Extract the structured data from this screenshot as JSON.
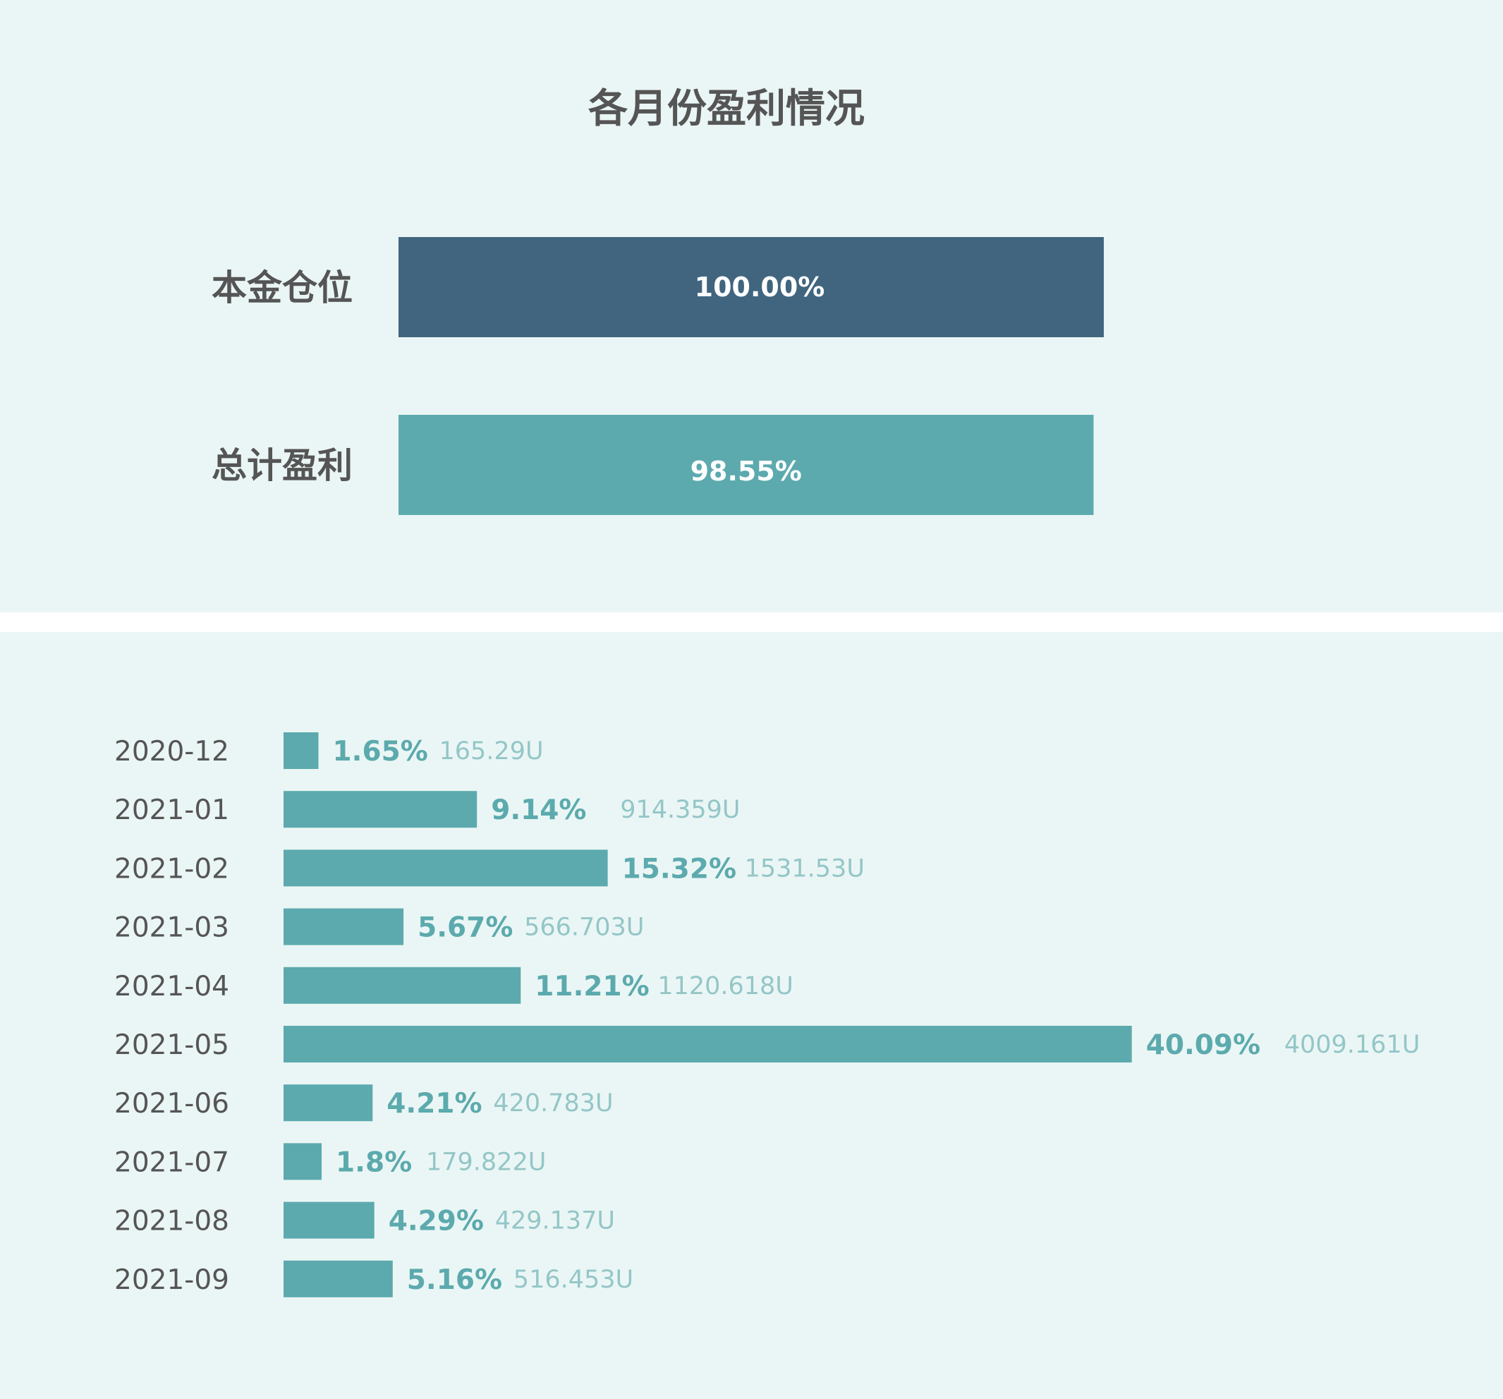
{
  "colors": {
    "background": "#eaf6f5",
    "divider": "#ffffff",
    "title_text": "#555555",
    "principal_bar": "#41657f",
    "profit_bar": "#5caaad",
    "bar_label": "#ffffff",
    "month_label": "#555555",
    "percent_label": "#5caaad",
    "amount_label": "#94c6c7"
  },
  "chart_data": [
    {
      "type": "bar",
      "orientation": "horizontal",
      "title": "各月份盈利情况",
      "categories": [
        "本金仓位",
        "总计盈利"
      ],
      "values": [
        100.0,
        98.55
      ],
      "value_labels": [
        "100.00%",
        "98.55%"
      ],
      "xlim": [
        0,
        100
      ],
      "grid": false
    },
    {
      "type": "bar",
      "orientation": "horizontal",
      "categories": [
        "2020-12",
        "2021-01",
        "2021-02",
        "2021-03",
        "2021-04",
        "2021-05",
        "2021-06",
        "2021-07",
        "2021-08",
        "2021-09"
      ],
      "values": [
        1.65,
        9.14,
        15.32,
        5.67,
        11.21,
        40.09,
        4.21,
        1.8,
        4.29,
        5.16
      ],
      "value_labels": [
        "1.65%",
        "9.14%",
        "15.32%",
        "5.67%",
        "11.21%",
        "40.09%",
        "4.21%",
        "1.8%",
        "4.29%",
        "5.16%"
      ],
      "amounts": [
        165.29,
        914.359,
        1531.53,
        566.703,
        1120.618,
        4009.161,
        420.783,
        179.822,
        429.137,
        516.453
      ],
      "amount_labels": [
        "165.29U",
        "914.359U",
        "1531.53U",
        "566.703U",
        "1120.618U",
        "4009.161U",
        "420.783U",
        "179.822U",
        "429.137U",
        "516.453U"
      ],
      "grid": false
    }
  ]
}
